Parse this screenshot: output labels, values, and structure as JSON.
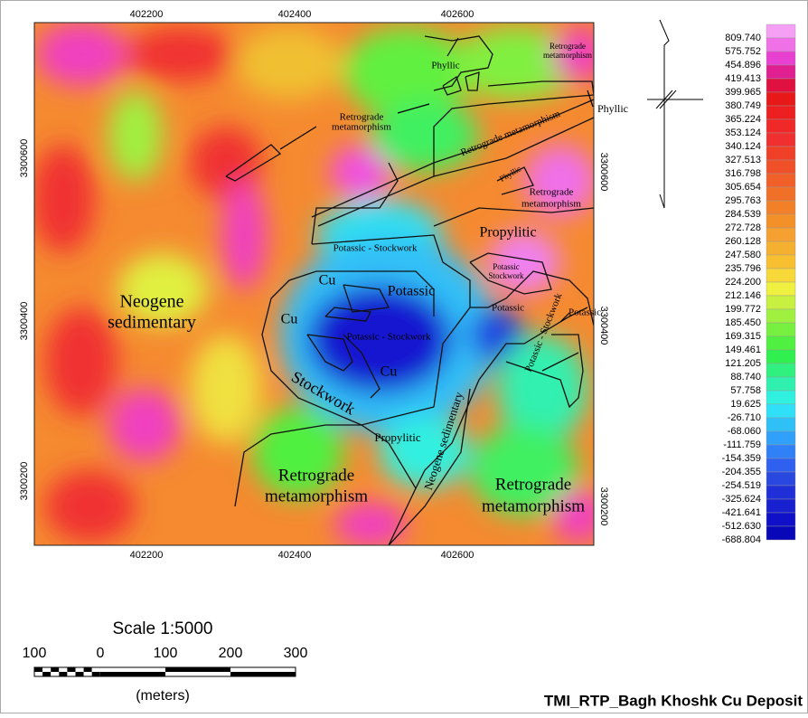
{
  "map": {
    "title": "TMI_RTP_Bagh Khoshk Cu Deposit",
    "x_labels": [
      "402200",
      "402400",
      "402600"
    ],
    "y_labels": [
      "3300600",
      "3300400",
      "3300200"
    ],
    "units": [
      {
        "lines": [
          "Phyllic"
        ]
      },
      {
        "lines": [
          "Retrograde",
          "metamorphism"
        ]
      },
      {
        "lines": [
          "Retrograde",
          "metamorphism"
        ]
      },
      {
        "lines": [
          "Phyllic"
        ]
      },
      {
        "lines": [
          "Retrograde metamorphism"
        ]
      },
      {
        "lines": [
          "Phyllic"
        ]
      },
      {
        "lines": [
          "Retrograde",
          "metamorphism"
        ]
      },
      {
        "lines": [
          "Potassic - Stockwork"
        ]
      },
      {
        "lines": [
          "Propylitic"
        ]
      },
      {
        "lines": [
          "Potassic",
          "Stockwork"
        ]
      },
      {
        "lines": [
          "Cu"
        ]
      },
      {
        "lines": [
          "Potassic"
        ]
      },
      {
        "lines": [
          "Neogene",
          "sedimentary"
        ]
      },
      {
        "lines": [
          "Cu"
        ]
      },
      {
        "lines": [
          "Potassic"
        ]
      },
      {
        "lines": [
          "Potassic"
        ]
      },
      {
        "lines": [
          "Potassic - Stockwork"
        ]
      },
      {
        "lines": [
          "Potassic - Stockwork"
        ]
      },
      {
        "lines": [
          "Cu"
        ]
      },
      {
        "lines": [
          "Stockwork"
        ]
      },
      {
        "lines": [
          "Propylitic"
        ]
      },
      {
        "lines": [
          "Neogene sedimentary"
        ]
      },
      {
        "lines": [
          "Retrograde",
          "metamorphism"
        ]
      },
      {
        "lines": [
          "Retrograde",
          "metamorphism"
        ]
      }
    ],
    "legend": {
      "labels": [
        "809.740",
        "575.752",
        "454.896",
        "419.413",
        "399.965",
        "380.749",
        "365.224",
        "353.124",
        "340.124",
        "327.513",
        "316.798",
        "305.654",
        "295.763",
        "284.539",
        "272.728",
        "260.128",
        "247.580",
        "235.796",
        "224.200",
        "212.146",
        "199.772",
        "185.450",
        "169.315",
        "149.461",
        "121.205",
        "88.740",
        "57.758",
        "19.625",
        "-26.710",
        "-68.060",
        "-111.759",
        "-154.359",
        "-204.355",
        "-254.519",
        "-325.624",
        "-421.641",
        "-512.630",
        "-688.804"
      ],
      "colors": [
        "#f5a0f5",
        "#f070e8",
        "#e840d0",
        "#e02090",
        "#e01040",
        "#e81818",
        "#ec2020",
        "#f02828",
        "#f03030",
        "#f04028",
        "#f05028",
        "#f06028",
        "#f07028",
        "#f28028",
        "#f49028",
        "#f5a030",
        "#f6b030",
        "#f8c030",
        "#f8d838",
        "#f0f040",
        "#c8f040",
        "#a0f040",
        "#78f040",
        "#50f040",
        "#30f050",
        "#30f080",
        "#30f0b0",
        "#30f0e0",
        "#30e0f8",
        "#30c0f8",
        "#30a0f8",
        "#3080f8",
        "#3060f0",
        "#2848e0",
        "#2030d8",
        "#1820d0",
        "#1010c8",
        "#0808b8"
      ]
    },
    "scale": {
      "title": "Scale 1:5000",
      "ticks": [
        "100",
        "0",
        "100",
        "200",
        "300"
      ],
      "unit": "(meters)"
    }
  }
}
